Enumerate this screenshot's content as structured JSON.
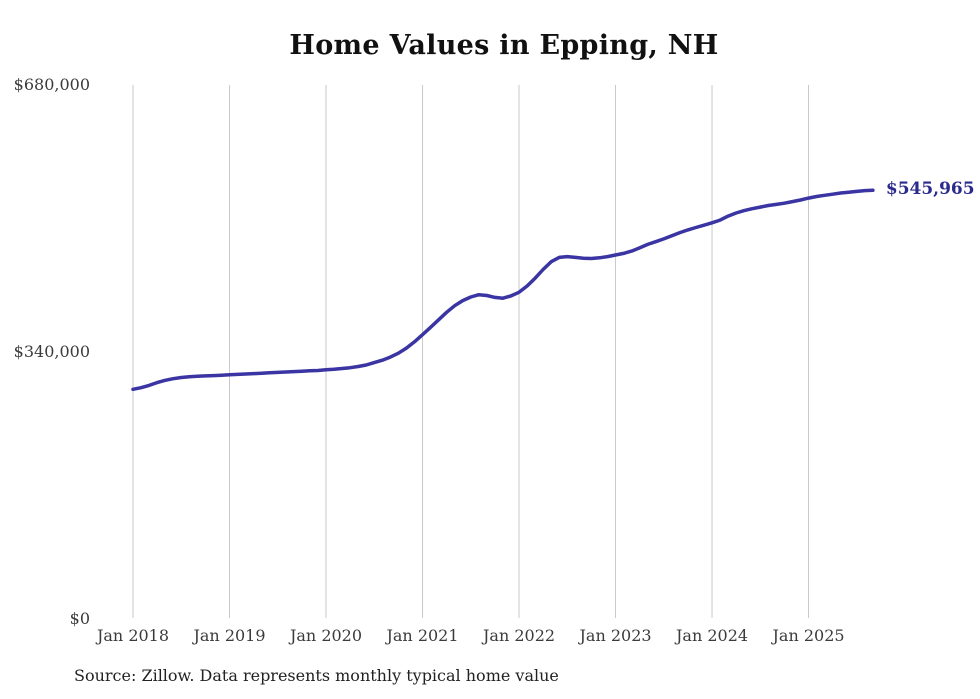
{
  "title": "Home Values in Epping, NH",
  "source_note": "Source: Zillow. Data represents monthly typical home value",
  "end_label": "$545,965",
  "colors": {
    "line": "#3a35a2",
    "end_label": "#2b2a8e",
    "grid": "#c9c9c9",
    "tick_text": "#3b3b3b",
    "title_text": "#111111",
    "source_text": "#222222",
    "background": "#ffffff"
  },
  "chart_data": {
    "type": "line",
    "title": "Home Values in Epping, NH",
    "xlabel": "",
    "ylabel": "",
    "ylim": [
      0,
      680000
    ],
    "grid": "vertical-only",
    "legend": "none",
    "x_start_month": "2018-01",
    "x_end_month": "2025-09",
    "x_tick_labels": [
      "Jan 2018",
      "Jan 2019",
      "Jan 2020",
      "Jan 2021",
      "Jan 2022",
      "Jan 2023",
      "Jan 2024",
      "Jan 2025"
    ],
    "y_ticks": [
      {
        "label": "$680,000",
        "value": 680000
      },
      {
        "label": "$340,000",
        "value": 340000
      },
      {
        "label": "$0",
        "value": 0
      }
    ],
    "last_value": 545965,
    "series": [
      {
        "name": "Monthly typical home value",
        "values": [
          292500,
          294500,
          297500,
          301000,
          304000,
          306000,
          307500,
          308500,
          309200,
          309600,
          310000,
          310500,
          311000,
          311500,
          312000,
          312500,
          313000,
          313500,
          314000,
          314500,
          315000,
          315500,
          316000,
          316500,
          317500,
          318000,
          319000,
          320000,
          321500,
          323500,
          326500,
          329500,
          333500,
          338500,
          345000,
          353000,
          362000,
          371500,
          381000,
          390500,
          399000,
          405500,
          410000,
          413000,
          412000,
          409500,
          408500,
          411500,
          416000,
          424000,
          434000,
          445000,
          455000,
          460500,
          461500,
          460500,
          459500,
          459000,
          460000,
          461500,
          463500,
          465500,
          468500,
          472500,
          477000,
          480500,
          484000,
          488000,
          492000,
          495500,
          498500,
          501500,
          504500,
          508000,
          513000,
          517000,
          520000,
          522500,
          524500,
          526500,
          528000,
          529500,
          531500,
          533500,
          536000,
          538000,
          539500,
          541000,
          542500,
          543500,
          544500,
          545500,
          545965
        ]
      }
    ]
  }
}
